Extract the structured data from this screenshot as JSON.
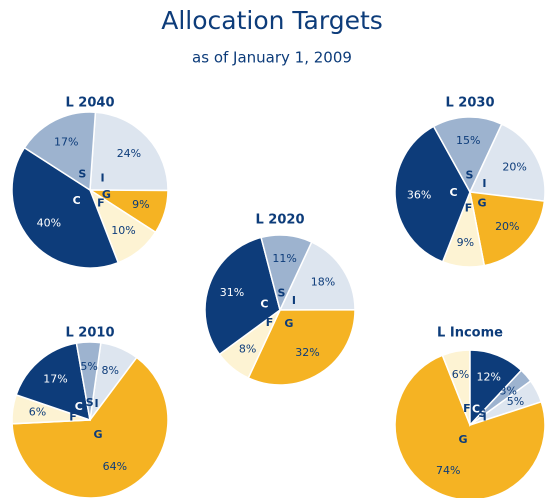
{
  "header": {
    "title": "Allocation Targets",
    "subtitle": "as of January 1, 2009"
  },
  "chart_data": [
    {
      "type": "pie",
      "title": "L 2040",
      "categories": [
        "I",
        "G",
        "F",
        "C",
        "S"
      ],
      "values": [
        24,
        9,
        10,
        40,
        17
      ],
      "value_labels": [
        "24%",
        "9%",
        "10%",
        "40%",
        "17%"
      ],
      "colors": [
        "#dde5ef",
        "#f5b323",
        "#fdf3d3",
        "#0d3c7a",
        "#9db3cf"
      ]
    },
    {
      "type": "pie",
      "title": "L 2030",
      "categories": [
        "I",
        "G",
        "F",
        "C",
        "S"
      ],
      "values": [
        20,
        20,
        9,
        36,
        15
      ],
      "value_labels": [
        "20%",
        "20%",
        "9%",
        "36%",
        "15%"
      ],
      "colors": [
        "#dde5ef",
        "#f5b323",
        "#fdf3d3",
        "#0d3c7a",
        "#9db3cf"
      ]
    },
    {
      "type": "pie",
      "title": "L 2020",
      "categories": [
        "I",
        "G",
        "F",
        "C",
        "S"
      ],
      "values": [
        18,
        32,
        8,
        31,
        11
      ],
      "value_labels": [
        "18%",
        "32%",
        "8%",
        "31%",
        "11%"
      ],
      "colors": [
        "#dde5ef",
        "#f5b323",
        "#fdf3d3",
        "#0d3c7a",
        "#9db3cf"
      ]
    },
    {
      "type": "pie",
      "title": "L 2010",
      "categories": [
        "I",
        "G",
        "F",
        "C",
        "S"
      ],
      "values": [
        8,
        64,
        6,
        17,
        5
      ],
      "value_labels": [
        "8%",
        "64%",
        "6%",
        "17%",
        "5%"
      ],
      "colors": [
        "#dde5ef",
        "#f5b323",
        "#fdf3d3",
        "#0d3c7a",
        "#9db3cf"
      ]
    },
    {
      "type": "pie",
      "title": "L Income",
      "categories": [
        "I",
        "G",
        "F",
        "C",
        "S"
      ],
      "values": [
        5,
        74,
        6,
        12,
        3
      ],
      "value_labels": [
        "5%",
        "74%",
        "6%",
        "12%",
        "3%"
      ],
      "colors": [
        "#dde5ef",
        "#f5b323",
        "#fdf3d3",
        "#0d3c7a",
        "#9db3cf"
      ]
    }
  ]
}
